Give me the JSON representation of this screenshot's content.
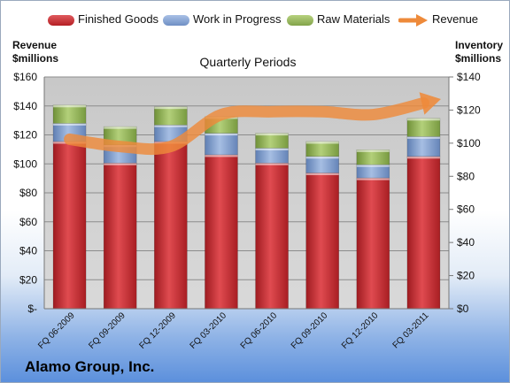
{
  "chart_data": {
    "type": "bar",
    "subtype": "stacked-bar-with-line",
    "title": "Quarterly Periods",
    "company": "Alamo Group, Inc.",
    "categories": [
      "FQ 06-2009",
      "FQ 09-2009",
      "FQ 12-2009",
      "FQ 03-2010",
      "FQ 06-2010",
      "FQ 09-2010",
      "FQ 12-2010",
      "FQ 03-2011"
    ],
    "series": [
      {
        "name": "Finished Goods",
        "axis": "right",
        "color": "#c0292e",
        "values": [
          101,
          88,
          101,
          93,
          88,
          82,
          79,
          92
        ]
      },
      {
        "name": "Work in Progress",
        "axis": "right",
        "color": "#7f9fcf",
        "values": [
          11,
          11,
          10,
          13,
          9,
          10,
          8,
          12
        ]
      },
      {
        "name": "Raw Materials",
        "axis": "right",
        "color": "#93b55a",
        "values": [
          11,
          11,
          11,
          10,
          9,
          9,
          9,
          11
        ]
      },
      {
        "name": "Revenue",
        "axis": "left",
        "type": "line",
        "color": "#ee8a3a",
        "values": [
          117,
          112,
          112,
          134,
          136,
          136,
          134,
          142
        ]
      }
    ],
    "left_axis": {
      "label_line1": "Revenue",
      "label_line2": "$millions",
      "ylim": [
        0,
        160
      ],
      "ticks": [
        "$-",
        "$20",
        "$40",
        "$60",
        "$80",
        "$100",
        "$120",
        "$140",
        "$160"
      ]
    },
    "right_axis": {
      "label_line1": "Inventory",
      "label_line2": "$millions",
      "ylim": [
        0,
        140
      ],
      "ticks": [
        "$0",
        "$20",
        "$40",
        "$60",
        "$80",
        "$100",
        "$120",
        "$140"
      ]
    },
    "grid": true,
    "legend_position": "top"
  }
}
